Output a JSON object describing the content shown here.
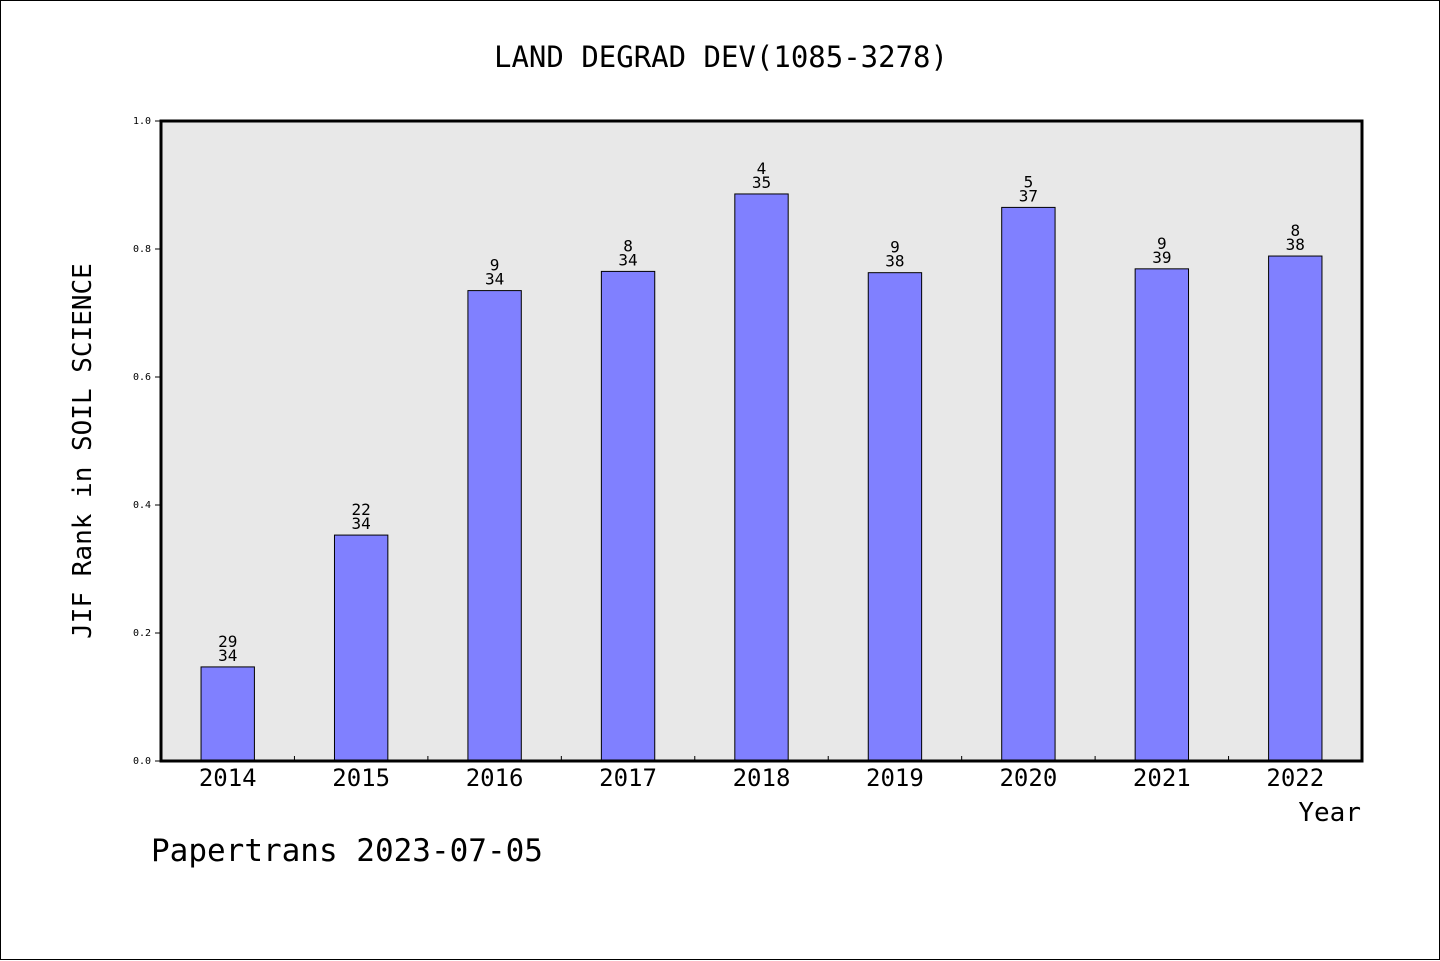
{
  "chart_data": {
    "type": "bar",
    "title": "LAND DEGRAD DEV(1085-3278)",
    "xlabel": "Year",
    "ylabel": "JIF Rank in SOIL SCIENCE",
    "ylim": [
      0,
      1.0
    ],
    "yticks": [
      "0.0",
      "0.2",
      "0.4",
      "0.6",
      "0.8",
      "1.0"
    ],
    "categories": [
      "2014",
      "2015",
      "2016",
      "2017",
      "2018",
      "2019",
      "2020",
      "2021",
      "2022"
    ],
    "values": [
      0.147,
      0.353,
      0.735,
      0.765,
      0.886,
      0.763,
      0.865,
      0.769,
      0.789
    ],
    "rank": [
      "29",
      "22",
      "9",
      "8",
      "4",
      "9",
      "5",
      "9",
      "8"
    ],
    "total": [
      "34",
      "34",
      "34",
      "34",
      "35",
      "38",
      "37",
      "39",
      "38"
    ],
    "grid": false,
    "colors": {
      "bar": "#8080ff",
      "plot_background": "#e8e8e8",
      "axis": "#000000"
    }
  },
  "footer": {
    "text": "Papertrans 2023-07-05"
  }
}
